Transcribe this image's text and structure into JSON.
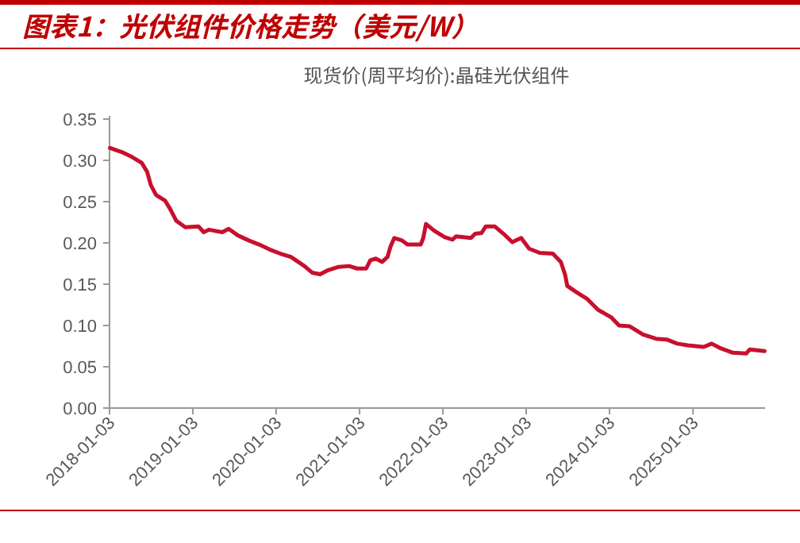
{
  "chart_data": {
    "type": "line",
    "title": "图表1：光伏组件价格走势（美元/W）",
    "subtitle": "现货价(周平均价):晶硅光伏组件",
    "x": [
      "2018-01-05",
      "2018-02-26",
      "2018-04-12",
      "2018-05-24",
      "2018-06-17",
      "2018-07-03",
      "2018-07-26",
      "2018-09-04",
      "2018-09-26",
      "2018-10-22",
      "2018-12-01",
      "2019-01-28",
      "2019-02-20",
      "2019-03-15",
      "2019-05-12",
      "2019-06-09",
      "2019-07-20",
      "2019-09-05",
      "2019-10-21",
      "2019-12-06",
      "2020-01-22",
      "2020-03-08",
      "2020-05-06",
      "2020-06-09",
      "2020-07-14",
      "2020-08-18",
      "2020-10-03",
      "2020-11-18",
      "2020-12-23",
      "2021-02-01",
      "2021-02-19",
      "2021-03-15",
      "2021-04-12",
      "2021-05-05",
      "2021-05-19",
      "2021-06-04",
      "2021-07-08",
      "2021-08-01",
      "2021-09-28",
      "2021-10-09",
      "2021-10-21",
      "2021-11-25",
      "2022-01-10",
      "2022-02-14",
      "2022-03-02",
      "2022-05-06",
      "2022-05-24",
      "2022-06-21",
      "2022-07-10",
      "2022-08-18",
      "2022-09-26",
      "2022-11-03",
      "2022-12-12",
      "2023-01-16",
      "2023-03-03",
      "2023-04-30",
      "2023-06-04",
      "2023-06-23",
      "2023-07-02",
      "2023-08-13",
      "2023-09-28",
      "2023-11-14",
      "2024-01-10",
      "2024-02-14",
      "2024-04-01",
      "2024-05-29",
      "2024-07-25",
      "2024-09-10",
      "2024-10-26",
      "2024-12-11",
      "2025-02-19",
      "2025-03-26",
      "2025-04-29",
      "2025-06-27",
      "2025-08-24",
      "2025-09-09",
      "2025-11-13"
    ],
    "series": [
      {
        "color": "#c8102e",
        "values": [
          0.315,
          0.31,
          0.304,
          0.297,
          0.286,
          0.27,
          0.258,
          0.251,
          0.241,
          0.227,
          0.219,
          0.22,
          0.213,
          0.216,
          0.213,
          0.217,
          0.209,
          0.203,
          0.198,
          0.192,
          0.187,
          0.183,
          0.172,
          0.164,
          0.162,
          0.167,
          0.171,
          0.172,
          0.169,
          0.169,
          0.179,
          0.181,
          0.177,
          0.183,
          0.196,
          0.206,
          0.203,
          0.198,
          0.198,
          0.206,
          0.223,
          0.215,
          0.207,
          0.204,
          0.208,
          0.206,
          0.211,
          0.212,
          0.22,
          0.22,
          0.211,
          0.201,
          0.206,
          0.193,
          0.188,
          0.187,
          0.177,
          0.161,
          0.148,
          0.14,
          0.132,
          0.119,
          0.11,
          0.1,
          0.099,
          0.089,
          0.084,
          0.083,
          0.078,
          0.076,
          0.074,
          0.078,
          0.073,
          0.067,
          0.066,
          0.071,
          0.069
        ]
      }
    ],
    "xlim": [
      "2018-01-03",
      "2025-11-15"
    ],
    "xticks": [
      "2018-01-03",
      "2019-01-03",
      "2020-01-03",
      "2021-01-03",
      "2022-01-03",
      "2023-01-03",
      "2024-01-03",
      "2025-01-03"
    ],
    "ylim": [
      0,
      0.35
    ],
    "yticks": [
      {
        "value": 0,
        "label": "0.00"
      },
      {
        "value": 0.05,
        "label": "0.05"
      },
      {
        "value": 0.1,
        "label": "0.10"
      },
      {
        "value": 0.15,
        "label": "0.15"
      },
      {
        "value": 0.2,
        "label": "0.20"
      },
      {
        "value": 0.25,
        "label": "0.25"
      },
      {
        "value": 0.3,
        "label": "0.30"
      },
      {
        "value": 0.35,
        "label": "0.35"
      }
    ],
    "grid": false,
    "line_style": "solid",
    "marker": "none"
  }
}
